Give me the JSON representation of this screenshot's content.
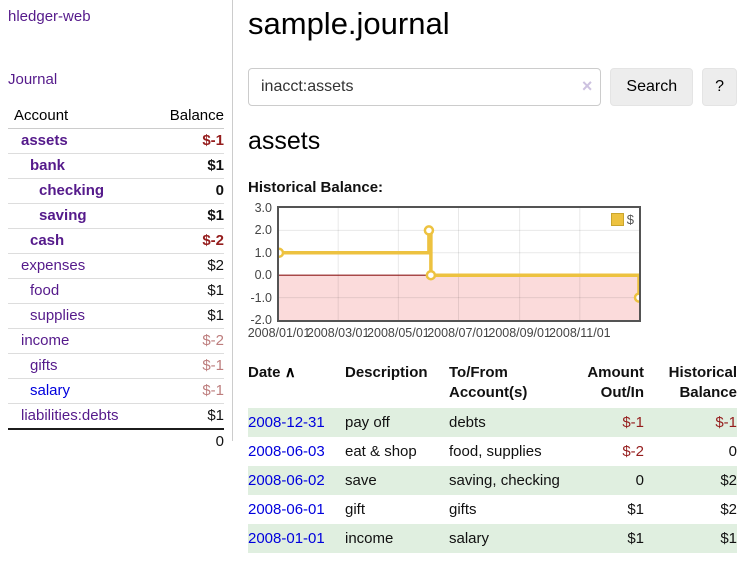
{
  "colors": {
    "link_visited_purple": "#551a8b",
    "link_blue": "#0000dd",
    "negative_strong": "#951d1d",
    "negative_dim": "#bd7d7d",
    "row_shade_green": "#e0efe0",
    "chart_line_gold": "#edc240",
    "chart_negative_region": "#fbdbdb",
    "chart_zero_line": "#8c1717",
    "chart_border": "#545454"
  },
  "sidebar": {
    "brand": "hledger-web",
    "nav": {
      "journal_label": "Journal"
    },
    "table": {
      "col_account": "Account",
      "col_balance": "Balance"
    },
    "accounts": [
      {
        "label": "assets",
        "value": "$-1",
        "depth": 1,
        "bold": true,
        "neg": true
      },
      {
        "label": "bank",
        "value": "$1",
        "depth": 2,
        "bold": true,
        "neg": false
      },
      {
        "label": "checking",
        "value": "0",
        "depth": 3,
        "bold": true,
        "neg": false
      },
      {
        "label": "saving",
        "value": "$1",
        "depth": 3,
        "bold": true,
        "neg": false
      },
      {
        "label": "cash",
        "value": "$-2",
        "depth": 2,
        "bold": true,
        "neg": true
      },
      {
        "label": "expenses",
        "value": "$2",
        "depth": 1,
        "bold": false,
        "neg": false
      },
      {
        "label": "food",
        "value": "$1",
        "depth": 2,
        "bold": false,
        "neg": false
      },
      {
        "label": "supplies",
        "value": "$1",
        "depth": 2,
        "bold": false,
        "neg": false
      },
      {
        "label": "income",
        "value": "$-2",
        "depth": 1,
        "bold": false,
        "neg": true
      },
      {
        "label": "gifts",
        "value": "$-1",
        "depth": 2,
        "bold": false,
        "neg": true
      },
      {
        "label": "salary",
        "value": "$-1",
        "depth": 2,
        "bold": false,
        "neg": true,
        "blue": true
      },
      {
        "label": "liabilities:debts",
        "value": "$1",
        "depth": 1,
        "bold": false,
        "neg": false
      }
    ],
    "total": "0"
  },
  "header": {
    "title": "sample.journal"
  },
  "search": {
    "query": "inacct:assets",
    "clear_icon": "×",
    "button_label": "Search",
    "help_label": "?"
  },
  "account_page": {
    "heading": "assets",
    "chart_label": "Historical Balance:"
  },
  "chart_data": {
    "type": "line",
    "title": "Historical Balance",
    "step": true,
    "x_range": [
      "2008-01-01",
      "2008-12-31"
    ],
    "x_tick_labels": [
      "2008/01/01",
      "2008/03/01",
      "2008/05/01",
      "2008/07/01",
      "2008/09/01",
      "2008/11/01"
    ],
    "y_tick_labels": [
      "3.0",
      "2.0",
      "1.0",
      "0.0",
      "-1.0",
      "-2.0"
    ],
    "ylim": [
      -2,
      3
    ],
    "grid": true,
    "legend_position": "top-right",
    "series": [
      {
        "name": "$",
        "color": "#edc240",
        "points": [
          [
            "2008-01-01",
            1
          ],
          [
            "2008-06-01",
            2
          ],
          [
            "2008-06-03",
            0
          ],
          [
            "2008-12-31",
            -1
          ]
        ]
      }
    ]
  },
  "register": {
    "columns": [
      {
        "label": "Date",
        "align": "al",
        "sort": "∧"
      },
      {
        "label": "Description",
        "align": "al"
      },
      {
        "label": "To/From Account(s)",
        "align": "al"
      },
      {
        "label": "Amount Out/In",
        "align": "ar"
      },
      {
        "label": "Historical Balance",
        "align": "ar"
      }
    ],
    "rows": [
      {
        "date": "2008-12-31",
        "description": "pay off",
        "accounts": "debts",
        "amount": "$-1",
        "amount_neg": true,
        "balance": "$-1",
        "balance_neg": true
      },
      {
        "date": "2008-06-03",
        "description": "eat & shop",
        "accounts": "food, supplies",
        "amount": "$-2",
        "amount_neg": true,
        "balance": "0",
        "balance_neg": false
      },
      {
        "date": "2008-06-02",
        "description": "save",
        "accounts": "saving, checking",
        "amount": "0",
        "amount_neg": false,
        "balance": "$2",
        "balance_neg": false
      },
      {
        "date": "2008-06-01",
        "description": "gift",
        "accounts": "gifts",
        "amount": "$1",
        "amount_neg": false,
        "balance": "$2",
        "balance_neg": false
      },
      {
        "date": "2008-01-01",
        "description": "income",
        "accounts": "salary",
        "amount": "$1",
        "amount_neg": false,
        "balance": "$1",
        "balance_neg": false
      }
    ]
  }
}
